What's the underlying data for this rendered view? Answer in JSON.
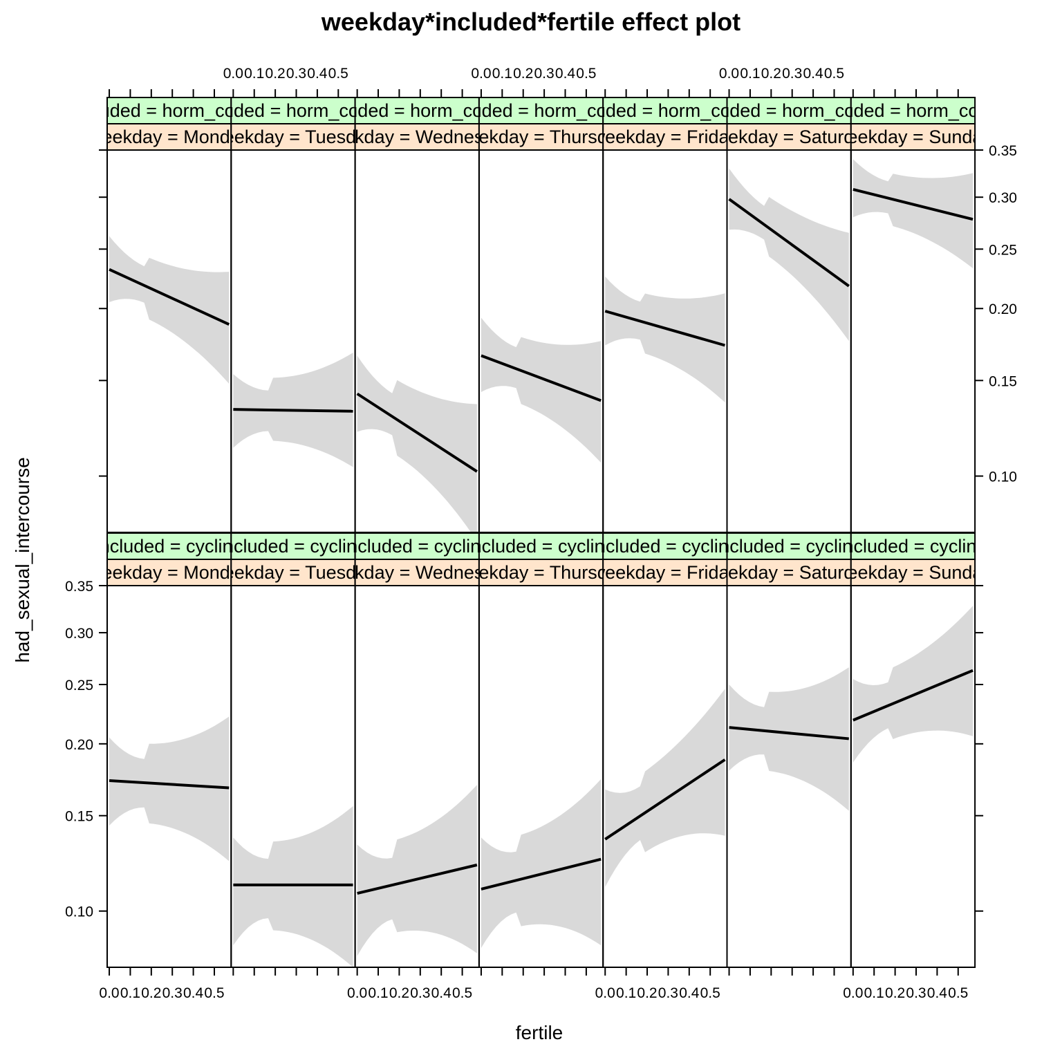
{
  "chart_data": {
    "type": "line",
    "title": "weekday*included*fertile effect plot",
    "xlabel": "fertile",
    "ylabel": "had_sexual_intercourse",
    "x_ticks": [
      0.0,
      0.1,
      0.2,
      0.3,
      0.4,
      0.5
    ],
    "x_tick_labels": [
      "0.0",
      "0.1",
      "0.2",
      "0.3",
      "0.4",
      "0.5"
    ],
    "xlim": [
      -0.01,
      0.58
    ],
    "y_scale": "logit",
    "y_ticks": [
      0.1,
      0.15,
      0.2,
      0.25,
      0.3,
      0.35
    ],
    "y_tick_labels": [
      "0.10",
      "0.15",
      "0.20",
      "0.25",
      "0.30",
      "0.35"
    ],
    "ylim": [
      0.078,
      0.35
    ],
    "strip_colors": {
      "included": "#ccffcc",
      "weekday": "#ffe5cc"
    },
    "band_color": "#d9d9d9",
    "rows": [
      {
        "included_strip": "included = horm_contra",
        "panels": [
          {
            "weekday_strip": "weekday = Monday",
            "x": [
              0,
              0.57
            ],
            "fit": [
              0.232,
              0.188
            ],
            "lower": [
              0.205,
              0.148
            ],
            "upper": [
              0.262,
              0.23
            ]
          },
          {
            "weekday_strip": "weekday = Tuesday",
            "x": [
              0,
              0.57
            ],
            "fit": [
              0.133,
              0.132
            ],
            "lower": [
              0.113,
              0.104
            ],
            "upper": [
              0.154,
              0.168
            ]
          },
          {
            "weekday_strip": "weekday = Wednesday",
            "x": [
              0,
              0.57
            ],
            "fit": [
              0.142,
              0.102
            ],
            "lower": [
              0.121,
              0.075
            ],
            "upper": [
              0.166,
              0.136
            ]
          },
          {
            "weekday_strip": "weekday = Thursday",
            "x": [
              0,
              0.57
            ],
            "fit": [
              0.166,
              0.138
            ],
            "lower": [
              0.143,
              0.106
            ],
            "upper": [
              0.193,
              0.176
            ]
          },
          {
            "weekday_strip": "weekday = Friday",
            "x": [
              0,
              0.57
            ],
            "fit": [
              0.198,
              0.173
            ],
            "lower": [
              0.173,
              0.137
            ],
            "upper": [
              0.226,
              0.212
            ]
          },
          {
            "weekday_strip": "weekday = Saturday",
            "x": [
              0,
              0.57
            ],
            "fit": [
              0.298,
              0.218
            ],
            "lower": [
              0.268,
              0.176
            ],
            "upper": [
              0.33,
              0.265
            ]
          },
          {
            "weekday_strip": "weekday = Sunday",
            "x": [
              0,
              0.57
            ],
            "fit": [
              0.308,
              0.278
            ],
            "lower": [
              0.28,
              0.233
            ],
            "upper": [
              0.34,
              0.325
            ]
          }
        ]
      },
      {
        "included_strip": "included = cycling",
        "panels": [
          {
            "weekday_strip": "weekday = Monday",
            "x": [
              0,
              0.57
            ],
            "fit": [
              0.173,
              0.168
            ],
            "lower": [
              0.144,
              0.124
            ],
            "upper": [
              0.205,
              0.222
            ]
          },
          {
            "weekday_strip": "weekday = Tuesday",
            "x": [
              0,
              0.57
            ],
            "fit": [
              0.112,
              0.112
            ],
            "lower": [
              0.086,
              0.078
            ],
            "upper": [
              0.137,
              0.156
            ]
          },
          {
            "weekday_strip": "weekday = Wednesday",
            "x": [
              0,
              0.57
            ],
            "fit": [
              0.108,
              0.122
            ],
            "lower": [
              0.082,
              0.083
            ],
            "upper": [
              0.133,
              0.17
            ]
          },
          {
            "weekday_strip": "weekday = Thursday",
            "x": [
              0,
              0.57
            ],
            "fit": [
              0.11,
              0.125
            ],
            "lower": [
              0.085,
              0.086
            ],
            "upper": [
              0.137,
              0.174
            ]
          },
          {
            "weekday_strip": "weekday = Friday",
            "x": [
              0,
              0.57
            ],
            "fit": [
              0.136,
              0.188
            ],
            "lower": [
              0.111,
              0.138
            ],
            "upper": [
              0.167,
              0.246
            ]
          },
          {
            "weekday_strip": "weekday = Saturday",
            "x": [
              0,
              0.57
            ],
            "fit": [
              0.213,
              0.204
            ],
            "lower": [
              0.18,
              0.153
            ],
            "upper": [
              0.25,
              0.266
            ]
          },
          {
            "weekday_strip": "weekday = Sunday",
            "x": [
              0,
              0.57
            ],
            "fit": [
              0.219,
              0.263
            ],
            "lower": [
              0.186,
              0.206
            ],
            "upper": [
              0.255,
              0.328
            ]
          }
        ]
      }
    ]
  }
}
